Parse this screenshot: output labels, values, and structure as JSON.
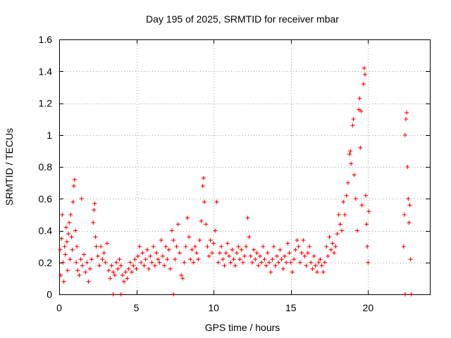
{
  "chart_data": {
    "type": "scatter",
    "title": "Day 195 of 2025, SRMTID for receiver mbar",
    "xlabel": "GPS time / hours",
    "ylabel": "SRMTID / TECUs",
    "xlim": [
      0,
      24
    ],
    "ylim": [
      0,
      1.6
    ],
    "xticks": [
      0,
      5,
      10,
      15,
      20
    ],
    "yticks": [
      0,
      0.2,
      0.4,
      0.6,
      0.8,
      1,
      1.2,
      1.4,
      1.6
    ],
    "xtick_labels": [
      "0",
      "5",
      "10",
      "15",
      "20"
    ],
    "ytick_labels": [
      "0",
      "0.2",
      "0.4",
      "0.6",
      "0.8",
      "1",
      "1.2",
      "1.4",
      "1.6"
    ],
    "grid": true,
    "marker": "+",
    "color": "#ff0000",
    "series": [
      {
        "name": "SRMTID",
        "points": [
          [
            0.05,
            0.28
          ],
          [
            0.1,
            0.12
          ],
          [
            0.15,
            0.35
          ],
          [
            0.2,
            0.5
          ],
          [
            0.25,
            0.2
          ],
          [
            0.3,
            0.08
          ],
          [
            0.35,
            0.3
          ],
          [
            0.4,
            0.25
          ],
          [
            0.45,
            0.42
          ],
          [
            0.5,
            0.33
          ],
          [
            0.55,
            0.15
          ],
          [
            0.6,
            0.38
          ],
          [
            0.65,
            0.45
          ],
          [
            0.7,
            0.22
          ],
          [
            0.75,
            0.5
          ],
          [
            0.8,
            0.36
          ],
          [
            0.85,
            0.28
          ],
          [
            0.9,
            0.58
          ],
          [
            0.95,
            0.68
          ],
          [
            1.0,
            0.72
          ],
          [
            1.05,
            0.4
          ],
          [
            1.1,
            0.2
          ],
          [
            1.15,
            0.3
          ],
          [
            1.2,
            0.15
          ],
          [
            1.3,
            0.12
          ],
          [
            1.4,
            0.22
          ],
          [
            1.45,
            0.6
          ],
          [
            1.5,
            0.18
          ],
          [
            1.6,
            0.25
          ],
          [
            1.7,
            0.14
          ],
          [
            1.8,
            0.2
          ],
          [
            1.9,
            0.08
          ],
          [
            2.0,
            0.16
          ],
          [
            2.1,
            0.22
          ],
          [
            2.2,
            0.45
          ],
          [
            2.25,
            0.53
          ],
          [
            2.3,
            0.57
          ],
          [
            2.35,
            0.36
          ],
          [
            2.4,
            0.3
          ],
          [
            2.5,
            0.24
          ],
          [
            2.6,
            0.18
          ],
          [
            2.7,
            0.3
          ],
          [
            2.8,
            0.22
          ],
          [
            2.9,
            0.26
          ],
          [
            3.0,
            0.2
          ],
          [
            3.1,
            0.32
          ],
          [
            3.2,
            0.15
          ],
          [
            3.3,
            0.1
          ],
          [
            3.4,
            0.18
          ],
          [
            3.5,
            0.14
          ],
          [
            3.6,
            0.12
          ],
          [
            3.7,
            0.2
          ],
          [
            3.8,
            0.16
          ],
          [
            3.9,
            0.22
          ],
          [
            4.0,
            0.18
          ],
          [
            4.1,
            0.12
          ],
          [
            4.2,
            0.08
          ],
          [
            4.3,
            0.14
          ],
          [
            4.4,
            0.1
          ],
          [
            4.5,
            0.16
          ],
          [
            4.6,
            0.2
          ],
          [
            4.7,
            0.14
          ],
          [
            4.8,
            0.18
          ],
          [
            4.9,
            0.22
          ],
          [
            5.0,
            0.16
          ],
          [
            5.1,
            0.24
          ],
          [
            5.2,
            0.3
          ],
          [
            5.3,
            0.2
          ],
          [
            5.4,
            0.26
          ],
          [
            5.5,
            0.18
          ],
          [
            5.6,
            0.22
          ],
          [
            5.7,
            0.28
          ],
          [
            5.8,
            0.16
          ],
          [
            5.9,
            0.24
          ],
          [
            6.0,
            0.2
          ],
          [
            6.1,
            0.3
          ],
          [
            6.2,
            0.18
          ],
          [
            6.3,
            0.26
          ],
          [
            6.4,
            0.22
          ],
          [
            6.5,
            0.2
          ],
          [
            6.6,
            0.34
          ],
          [
            6.7,
            0.24
          ],
          [
            6.8,
            0.18
          ],
          [
            6.9,
            0.3
          ],
          [
            7.0,
            0.22
          ],
          [
            7.1,
            0.28
          ],
          [
            7.2,
            0.16
          ],
          [
            7.3,
            0.4
          ],
          [
            7.4,
            0.34
          ],
          [
            7.5,
            0.22
          ],
          [
            7.6,
            0.3
          ],
          [
            7.7,
            0.44
          ],
          [
            7.8,
            0.26
          ],
          [
            7.9,
            0.12
          ],
          [
            8.0,
            0.1
          ],
          [
            8.1,
            0.2
          ],
          [
            8.2,
            0.3
          ],
          [
            8.3,
            0.48
          ],
          [
            8.4,
            0.36
          ],
          [
            8.5,
            0.22
          ],
          [
            8.6,
            0.28
          ],
          [
            8.7,
            0.2
          ],
          [
            8.8,
            0.3
          ],
          [
            8.9,
            0.26
          ],
          [
            9.0,
            0.22
          ],
          [
            9.1,
            0.34
          ],
          [
            9.2,
            0.46
          ],
          [
            9.3,
            0.68
          ],
          [
            9.35,
            0.73
          ],
          [
            9.4,
            0.58
          ],
          [
            9.5,
            0.44
          ],
          [
            9.6,
            0.3
          ],
          [
            9.7,
            0.24
          ],
          [
            9.8,
            0.34
          ],
          [
            9.9,
            0.26
          ],
          [
            10.0,
            0.32
          ],
          [
            10.1,
            0.4
          ],
          [
            10.2,
            0.58
          ],
          [
            10.3,
            0.2
          ],
          [
            10.4,
            0.26
          ],
          [
            10.5,
            0.3
          ],
          [
            10.6,
            0.22
          ],
          [
            10.7,
            0.18
          ],
          [
            10.8,
            0.26
          ],
          [
            10.9,
            0.32
          ],
          [
            11.0,
            0.24
          ],
          [
            11.1,
            0.2
          ],
          [
            11.2,
            0.28
          ],
          [
            11.3,
            0.22
          ],
          [
            11.4,
            0.18
          ],
          [
            11.5,
            0.26
          ],
          [
            11.6,
            0.3
          ],
          [
            11.7,
            0.22
          ],
          [
            11.8,
            0.28
          ],
          [
            11.9,
            0.2
          ],
          [
            12.0,
            0.24
          ],
          [
            12.1,
            0.3
          ],
          [
            12.2,
            0.48
          ],
          [
            12.3,
            0.36
          ],
          [
            12.4,
            0.24
          ],
          [
            12.5,
            0.2
          ],
          [
            12.6,
            0.28
          ],
          [
            12.7,
            0.22
          ],
          [
            12.8,
            0.26
          ],
          [
            12.9,
            0.18
          ],
          [
            13.0,
            0.24
          ],
          [
            13.1,
            0.2
          ],
          [
            13.2,
            0.3
          ],
          [
            13.3,
            0.22
          ],
          [
            13.4,
            0.18
          ],
          [
            13.5,
            0.26
          ],
          [
            13.6,
            0.2
          ],
          [
            13.7,
            0.14
          ],
          [
            13.8,
            0.22
          ],
          [
            13.9,
            0.3
          ],
          [
            14.0,
            0.18
          ],
          [
            14.1,
            0.24
          ],
          [
            14.2,
            0.2
          ],
          [
            14.3,
            0.28
          ],
          [
            14.4,
            0.22
          ],
          [
            14.5,
            0.16
          ],
          [
            14.6,
            0.24
          ],
          [
            14.7,
            0.2
          ],
          [
            14.8,
            0.32
          ],
          [
            14.9,
            0.26
          ],
          [
            15.0,
            0.2
          ],
          [
            15.1,
            0.14
          ],
          [
            15.2,
            0.22
          ],
          [
            15.3,
            0.28
          ],
          [
            15.4,
            0.34
          ],
          [
            15.5,
            0.3
          ],
          [
            15.6,
            0.2
          ],
          [
            15.7,
            0.26
          ],
          [
            15.8,
            0.34
          ],
          [
            15.9,
            0.24
          ],
          [
            16.0,
            0.18
          ],
          [
            16.1,
            0.26
          ],
          [
            16.2,
            0.3
          ],
          [
            16.3,
            0.2
          ],
          [
            16.4,
            0.16
          ],
          [
            16.5,
            0.24
          ],
          [
            16.6,
            0.18
          ],
          [
            16.7,
            0.14
          ],
          [
            16.8,
            0.2
          ],
          [
            16.9,
            0.22
          ],
          [
            17.0,
            0.18
          ],
          [
            17.1,
            0.14
          ],
          [
            17.2,
            0.2
          ],
          [
            17.3,
            0.3
          ],
          [
            17.4,
            0.24
          ],
          [
            17.5,
            0.36
          ],
          [
            17.6,
            0.28
          ],
          [
            17.7,
            0.32
          ],
          [
            17.8,
            0.26
          ],
          [
            17.9,
            0.3
          ],
          [
            18.0,
            0.38
          ],
          [
            18.1,
            0.5
          ],
          [
            18.2,
            0.44
          ],
          [
            18.3,
            0.4
          ],
          [
            18.4,
            0.58
          ],
          [
            18.5,
            0.5
          ],
          [
            18.6,
            0.62
          ],
          [
            18.7,
            0.7
          ],
          [
            18.8,
            0.88
          ],
          [
            18.85,
            0.9
          ],
          [
            18.9,
            0.82
          ],
          [
            19.0,
            1.06
          ],
          [
            19.05,
            1.1
          ],
          [
            19.1,
            0.75
          ],
          [
            19.2,
            0.6
          ],
          [
            19.3,
            0.4
          ],
          [
            19.4,
            1.16
          ],
          [
            19.45,
            1.23
          ],
          [
            19.5,
            0.92
          ],
          [
            19.55,
            1.15
          ],
          [
            19.6,
            0.56
          ],
          [
            19.7,
            1.32
          ],
          [
            19.75,
            1.42
          ],
          [
            19.8,
            1.38
          ],
          [
            19.85,
            0.62
          ],
          [
            19.9,
            0.44
          ],
          [
            19.95,
            0.3
          ],
          [
            20.0,
            0.2
          ],
          [
            20.05,
            0.52
          ],
          [
            22.3,
            0.3
          ],
          [
            22.35,
            0.5
          ],
          [
            22.4,
            1.0
          ],
          [
            22.45,
            1.1
          ],
          [
            22.5,
            1.14
          ],
          [
            22.55,
            0.8
          ],
          [
            22.6,
            0.6
          ],
          [
            22.65,
            0.45
          ],
          [
            22.7,
            0.56
          ],
          [
            22.75,
            0.22
          ],
          [
            3.5,
            0.0
          ],
          [
            4.0,
            0.0
          ],
          [
            7.4,
            0.0
          ],
          [
            22.4,
            0.0
          ],
          [
            22.8,
            0.0
          ]
        ]
      }
    ]
  }
}
